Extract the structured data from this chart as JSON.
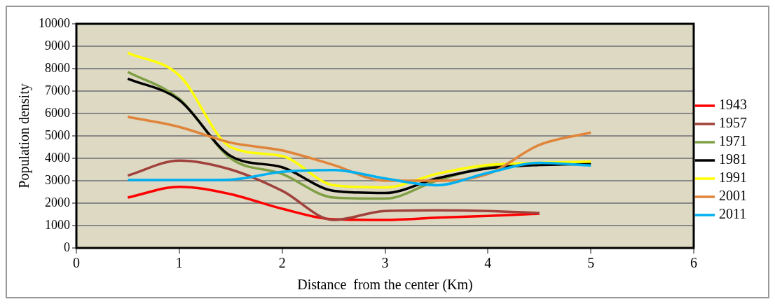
{
  "chart_data": {
    "type": "line",
    "xlabel": "Distance  from the center (Km)",
    "ylabel": "Population density",
    "x": [
      0.5,
      1,
      1.5,
      2,
      2.5,
      3,
      3.5,
      4,
      4.5,
      5
    ],
    "xlim": [
      0,
      6
    ],
    "xticks": [
      0,
      1,
      2,
      3,
      4,
      5,
      6
    ],
    "ylim": [
      0,
      10000
    ],
    "yticks": [
      0,
      1000,
      2000,
      3000,
      4000,
      5000,
      6000,
      7000,
      8000,
      9000,
      10000
    ],
    "grid": "y",
    "legend": "right",
    "marker": "none",
    "line_style": "solid",
    "series": [
      {
        "name": "1943",
        "color": "#ff0000",
        "values": [
          2250,
          2730,
          2400,
          1750,
          1280,
          1250,
          1350,
          1430,
          1530,
          null
        ]
      },
      {
        "name": "1957",
        "color": "#a0413c",
        "values": [
          3230,
          3900,
          3500,
          2550,
          1250,
          1650,
          1680,
          1650,
          1560,
          null
        ]
      },
      {
        "name": "1971",
        "color": "#7f9f45",
        "values": [
          7850,
          6650,
          4000,
          3300,
          2250,
          2200,
          3000,
          3600,
          3750,
          3800
        ]
      },
      {
        "name": "1981",
        "color": "#000000",
        "values": [
          7550,
          6600,
          4100,
          3600,
          2550,
          2450,
          3100,
          3550,
          3700,
          3750
        ]
      },
      {
        "name": "1991",
        "color": "#ffff00",
        "values": [
          8700,
          7700,
          4500,
          4100,
          2800,
          2700,
          3300,
          3700,
          3800,
          3850
        ]
      },
      {
        "name": "2001",
        "color": "#e0843a",
        "values": [
          5850,
          5400,
          4700,
          4350,
          3700,
          3000,
          3000,
          3300,
          4600,
          5150
        ]
      },
      {
        "name": "2011",
        "color": "#00b0f0",
        "values": [
          3030,
          3030,
          3050,
          3400,
          3480,
          3100,
          2800,
          3350,
          3800,
          3680
        ]
      }
    ]
  }
}
